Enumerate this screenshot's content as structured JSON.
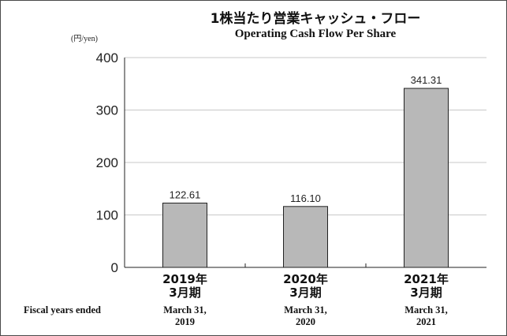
{
  "chart_data": {
    "type": "bar",
    "title": "1株当たり営業キャッシュ・フロー",
    "subtitle": "Operating Cash Flow Per Share",
    "unit_label": "(円/yen)",
    "xlabel": "Fiscal years ended",
    "ylabel": "",
    "ylim": [
      0,
      400
    ],
    "yticks": [
      0,
      100,
      200,
      300,
      400
    ],
    "grid": true,
    "categories": [
      {
        "jp1": "2019年",
        "jp2": "3月期",
        "en1": "March 31,",
        "en2": "2019"
      },
      {
        "jp1": "2020年",
        "jp2": "3月期",
        "en1": "March 31,",
        "en2": "2020"
      },
      {
        "jp1": "2021年",
        "jp2": "3月期",
        "en1": "March 31,",
        "en2": "2021"
      }
    ],
    "values": [
      122.61,
      116.1,
      341.31
    ],
    "value_labels": [
      "122.61",
      "116.10",
      "341.31"
    ],
    "bar_color": "#b8b8b8",
    "bar_stroke": "#222222",
    "grid_color": "#c8c8c8"
  }
}
